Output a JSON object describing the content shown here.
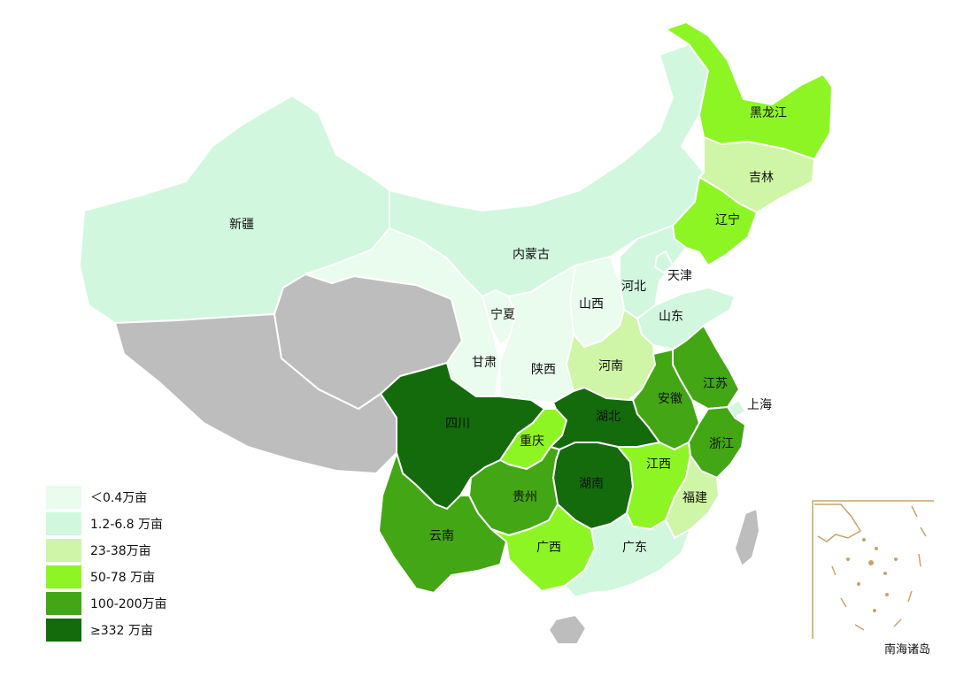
{
  "map": {
    "legend": [
      {
        "label": "＜0.4万亩",
        "color": "#eafced"
      },
      {
        "label": "1.2-6.8 万亩",
        "color": "#d2f7df"
      },
      {
        "label": "23-38万亩",
        "color": "#cff5a6"
      },
      {
        "label": "50-78 万亩",
        "color": "#8ef525"
      },
      {
        "label": "100-200万亩",
        "color": "#43a614"
      },
      {
        "label": "≥332 万亩",
        "color": "#136b0c"
      }
    ],
    "no_data_color": "#bdbdbd",
    "provinces": {
      "xinjiang": "新疆",
      "neimenggu": "内蒙古",
      "heilongjiang": "黑龙江",
      "jilin": "吉林",
      "liaoning": "辽宁",
      "tianjin": "天津",
      "hebei": "河北",
      "shanxi": "山西",
      "ningxia": "宁夏",
      "shandong": "山东",
      "gansu": "甘肃",
      "shaanxi": "陕西",
      "henan": "河南",
      "jiangsu": "江苏",
      "shanghai": "上海",
      "anhui": "安徽",
      "sichuan": "四川",
      "hubei": "湖北",
      "chongqing": "重庆",
      "zhejiang": "浙江",
      "jiangxi": "江西",
      "hunan": "湖南",
      "guizhou": "贵州",
      "fujian": "福建",
      "yunnan": "云南",
      "guangxi": "广西",
      "guangdong": "广东"
    },
    "inset_label": "南海诸岛"
  }
}
